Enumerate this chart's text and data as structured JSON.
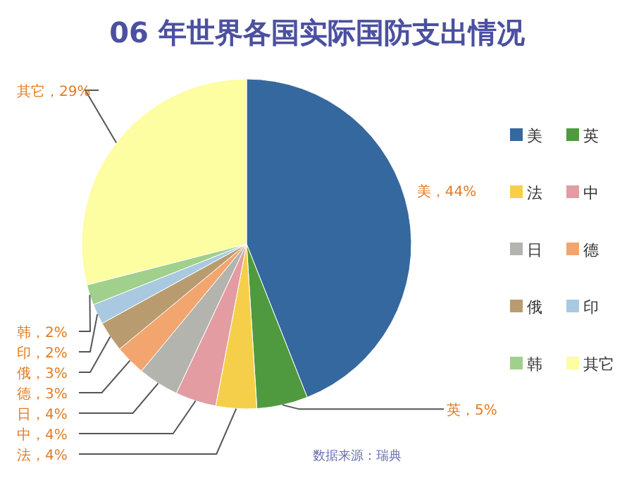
{
  "chart_data": {
    "type": "pie",
    "title": "06 年世界各国实际国防支出情况",
    "categories": [
      "美",
      "英",
      "法",
      "中",
      "日",
      "德",
      "俄",
      "印",
      "韩",
      "其它"
    ],
    "values": [
      44,
      5,
      4,
      4,
      4,
      3,
      3,
      2,
      2,
      29
    ],
    "colors": [
      "#35689e",
      "#4f9a3f",
      "#f6cf4a",
      "#e29ca2",
      "#b4b4ae",
      "#f2a56e",
      "#b89b6f",
      "#a9c9e1",
      "#a0d08b",
      "#fdfda2"
    ],
    "value_labels": [
      "美，44%",
      "英，5%",
      "法，4%",
      "中，4%",
      "日，4%",
      "德，3%",
      "俄，3%",
      "印，2%",
      "韩，2%",
      "其它，29%"
    ],
    "legend": "right",
    "annotations": [
      "数据来源：瑞典"
    ]
  }
}
